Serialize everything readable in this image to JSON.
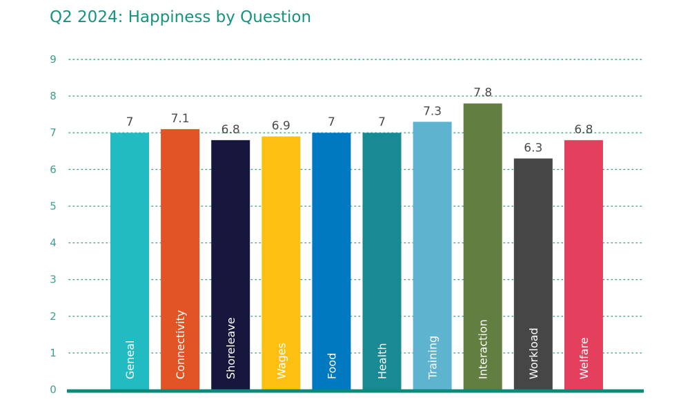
{
  "chart_data": {
    "type": "bar",
    "title": "Q2 2024: Happiness by Question",
    "xlabel": "",
    "ylabel": "",
    "ylim": [
      0,
      9
    ],
    "yticks": [
      0,
      1,
      2,
      3,
      4,
      5,
      6,
      7,
      8,
      9
    ],
    "grid": true,
    "categories": [
      "Geneal",
      "Connectivity",
      "Shoreleave",
      "Wages",
      "Food",
      "Health",
      "Training",
      "Interaction",
      "Workload",
      "Welfare"
    ],
    "values": [
      7,
      7.1,
      6.8,
      6.9,
      7,
      7,
      7.3,
      7.8,
      6.3,
      6.8
    ],
    "value_labels": [
      "7",
      "7.1",
      "6.8",
      "6.9",
      "7",
      "7",
      "7.3",
      "7.8",
      "6.3",
      "6.8"
    ],
    "colors": [
      "#23bbc2",
      "#e25424",
      "#17163d",
      "#fdc010",
      "#0079c1",
      "#188a93",
      "#5eb4ce",
      "#627f41",
      "#464646",
      "#e43f5c"
    ],
    "baseline_color": "#0a8a78",
    "grid_color": "#3d9f8c"
  }
}
